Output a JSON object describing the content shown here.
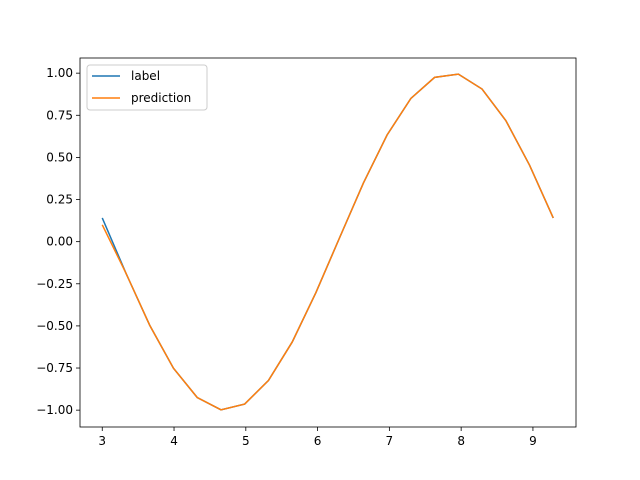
{
  "chart_data": {
    "type": "line",
    "x": [
      3,
      3.331,
      3.661,
      3.992,
      4.323,
      4.654,
      4.984,
      5.315,
      5.646,
      5.976,
      6.307,
      6.638,
      6.968,
      7.299,
      7.63,
      7.961,
      8.291,
      8.622,
      8.953,
      9.283
    ],
    "series": [
      {
        "name": "label",
        "color": "#1f77b4",
        "values": [
          0.141,
          -0.188,
          -0.496,
          -0.751,
          -0.925,
          -0.998,
          -0.964,
          -0.824,
          -0.596,
          -0.303,
          0.024,
          0.348,
          0.633,
          0.85,
          0.975,
          0.994,
          0.906,
          0.719,
          0.454,
          0.141
        ]
      },
      {
        "name": "prediction",
        "color": "#ff7f0e",
        "values": [
          0.1,
          -0.188,
          -0.496,
          -0.751,
          -0.925,
          -0.998,
          -0.964,
          -0.824,
          -0.596,
          -0.303,
          0.024,
          0.348,
          0.633,
          0.85,
          0.975,
          0.994,
          0.906,
          0.719,
          0.454,
          0.141
        ]
      }
    ],
    "xlim": [
      2.69,
      9.6
    ],
    "ylim": [
      -1.1,
      1.09
    ],
    "xticks": [
      3,
      4,
      5,
      6,
      7,
      8,
      9
    ],
    "yticks": [
      {
        "value": -1,
        "label": "−1.00"
      },
      {
        "value": -0.75,
        "label": "−0.75"
      },
      {
        "value": -0.5,
        "label": "−0.50"
      },
      {
        "value": -0.25,
        "label": "−0.25"
      },
      {
        "value": 0,
        "label": "0.00"
      },
      {
        "value": 0.25,
        "label": "0.25"
      },
      {
        "value": 0.5,
        "label": "0.50"
      },
      {
        "value": 0.75,
        "label": "0.75"
      },
      {
        "value": 1,
        "label": "1.00"
      }
    ],
    "legend": "upper left",
    "grid": false
  }
}
